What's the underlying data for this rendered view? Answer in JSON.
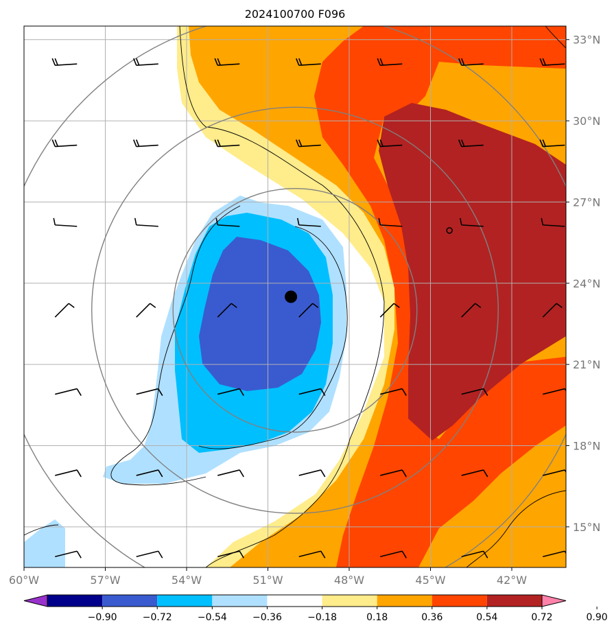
{
  "chart_data": {
    "type": "heatmap",
    "title": "2024100700 F096",
    "x_ticks": [
      {
        "value": -60,
        "label": "60°W"
      },
      {
        "value": -57,
        "label": "57°W"
      },
      {
        "value": -54,
        "label": "54°W"
      },
      {
        "value": -51,
        "label": "51°W"
      },
      {
        "value": -48,
        "label": "48°W"
      },
      {
        "value": -45,
        "label": "45°W"
      },
      {
        "value": -42,
        "label": "42°W"
      }
    ],
    "y_ticks": [
      {
        "value": 33,
        "label": "33°N"
      },
      {
        "value": 30,
        "label": "30°N"
      },
      {
        "value": 27,
        "label": "27°N"
      },
      {
        "value": 24,
        "label": "24°N"
      },
      {
        "value": 21,
        "label": "21°N"
      },
      {
        "value": 18,
        "label": "18°N"
      },
      {
        "value": 15,
        "label": "15°N"
      }
    ],
    "xlim": [
      -60,
      -40
    ],
    "ylim": [
      13.5,
      33.5
    ],
    "grid": true,
    "colorbar": {
      "orientation": "horizontal",
      "extend": "both",
      "levels": [
        "−0.90",
        "−0.72",
        "−0.54",
        "−0.36",
        "−0.18",
        "0.18",
        "0.36",
        "0.54",
        "0.72",
        "0.90"
      ],
      "colors": [
        "#9932cc",
        "#00008b",
        "#3a5bcf",
        "#00bfff",
        "#b0e0ff",
        "#ffffff",
        "#ffec8b",
        "#ffa500",
        "#ff4500",
        "#b22222",
        "#ff82ab"
      ]
    },
    "center_marker": {
      "lon": -50.15,
      "lat": 23.5
    },
    "small_marker": {
      "lon": -44.3,
      "lat": 25.95
    },
    "range_rings_center": {
      "lon": -50.0,
      "lat": 23.0
    },
    "range_ring_radii_deg": [
      4.5,
      7.5,
      11.0
    ],
    "wind_barb_lons": [
      -58.5,
      -55.5,
      -52.5,
      -49.5,
      -46.5,
      -43.5,
      -40.5
    ],
    "wind_barb_lats": [
      32.0,
      29.0,
      26.0,
      23.0,
      20.0,
      17.0,
      14.0
    ]
  }
}
